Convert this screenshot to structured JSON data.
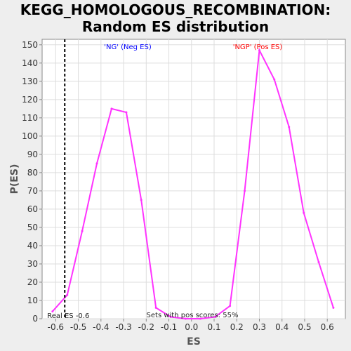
{
  "chart_data": {
    "type": "line",
    "title": "KEGG_HOMOLOGOUS_RECOMBINATION:",
    "subtitle": "Random ES distribution",
    "xlabel": "ES",
    "ylabel": "P(ES)",
    "xlim": [
      -0.66,
      0.68
    ],
    "ylim": [
      0,
      153
    ],
    "x_ticks": [
      -0.6,
      -0.5,
      -0.4,
      -0.3,
      -0.2,
      -0.1,
      0.0,
      0.1,
      0.2,
      0.3,
      0.4,
      0.5,
      0.6
    ],
    "x_tick_labels": [
      "-0.6",
      "-0.5",
      "-0.4",
      "-0.3",
      "-0.2",
      "-0.1",
      "0.0",
      "0.1",
      "0.2",
      "0.3",
      "0.4",
      "0.5",
      "0.6"
    ],
    "y_ticks": [
      0,
      10,
      20,
      30,
      40,
      50,
      60,
      70,
      80,
      90,
      100,
      110,
      120,
      130,
      140,
      150
    ],
    "grid": true,
    "series": [
      {
        "color": "#ff33ff",
        "x": [
          -0.614,
          -0.549,
          -0.483,
          -0.418,
          -0.353,
          -0.288,
          -0.222,
          -0.157,
          -0.092,
          -0.026,
          0.039,
          0.104,
          0.17,
          0.235,
          0.3,
          0.366,
          0.431,
          0.496,
          0.562,
          0.627
        ],
        "y": [
          4,
          13,
          48,
          85,
          115,
          113,
          65,
          6,
          1,
          0,
          0,
          1,
          7,
          70,
          147,
          131,
          105,
          58,
          31,
          6
        ]
      }
    ],
    "real_es": {
      "value": -0.56,
      "label": "Real ES -0.6",
      "color": "#000000"
    },
    "annotations": {
      "neg_label": "'NG' (Neg ES)",
      "neg_color": "#0000ff",
      "pos_label": "'NGP' (Pos ES)",
      "pos_color": "#ff0000",
      "pos_scores_label": "Sets with pos scores: 55%"
    }
  }
}
